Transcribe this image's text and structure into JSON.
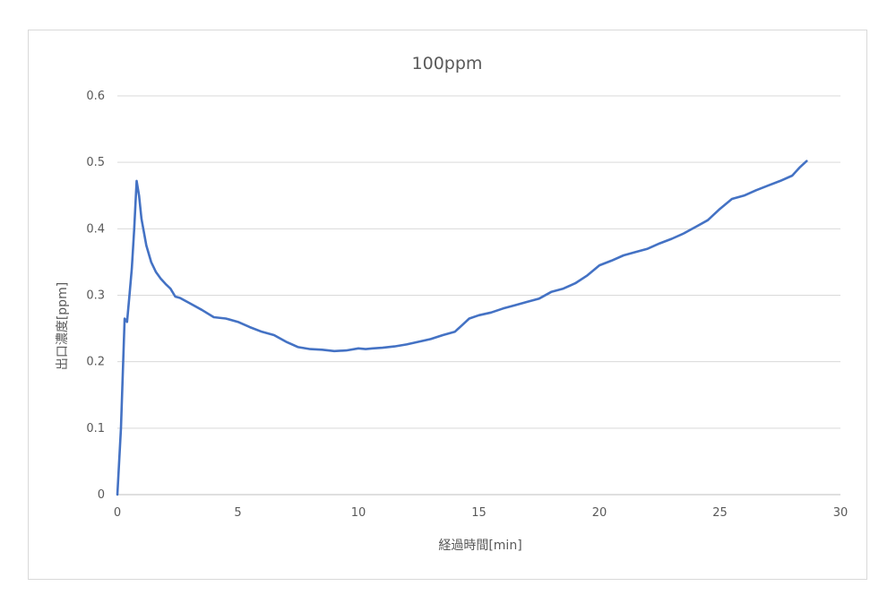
{
  "chart_data": {
    "type": "line",
    "title": "100ppm",
    "xlabel": "経過時間[min]",
    "ylabel": "出口濃度[ppm]",
    "xlim": [
      0,
      30
    ],
    "ylim": [
      0,
      0.6
    ],
    "x_ticks": [
      "0",
      "5",
      "10",
      "15",
      "20",
      "25",
      "30"
    ],
    "y_ticks": [
      "0",
      "0.1",
      "0.2",
      "0.3",
      "0.4",
      "0.5",
      "0.6"
    ],
    "grid": "horizontal",
    "legend": "none",
    "colors": {
      "series": "#4472c4",
      "grid": "#d9d9d9",
      "axis": "#bfbfbf",
      "text": "#595959"
    },
    "series": [
      {
        "x": [
          0,
          0.15,
          0.3,
          0.4,
          0.5,
          0.6,
          0.7,
          0.8,
          0.9,
          1.0,
          1.2,
          1.4,
          1.6,
          1.8,
          2.0,
          2.2,
          2.4,
          2.6,
          3.0,
          3.5,
          4.0,
          4.5,
          5.0,
          5.5,
          6.0,
          6.5,
          7.0,
          7.5,
          8.0,
          8.5,
          9.0,
          9.5,
          10.0,
          10.3,
          10.6,
          11.0,
          11.5,
          12.0,
          12.5,
          13.0,
          13.5,
          14.0,
          14.3,
          14.6,
          15.0,
          15.5,
          16.0,
          16.5,
          17.0,
          17.5,
          18.0,
          18.5,
          19.0,
          19.5,
          20.0,
          20.5,
          21.0,
          21.5,
          22.0,
          22.5,
          23.0,
          23.5,
          24.0,
          24.5,
          25.0,
          25.5,
          26.0,
          26.5,
          27.0,
          27.5,
          28.0,
          28.3,
          28.6
        ],
        "y": [
          0,
          0.1,
          0.265,
          0.26,
          0.3,
          0.34,
          0.4,
          0.472,
          0.45,
          0.415,
          0.375,
          0.35,
          0.335,
          0.325,
          0.317,
          0.31,
          0.298,
          0.296,
          0.288,
          0.278,
          0.267,
          0.265,
          0.26,
          0.252,
          0.245,
          0.24,
          0.23,
          0.222,
          0.219,
          0.218,
          0.216,
          0.217,
          0.22,
          0.219,
          0.22,
          0.221,
          0.223,
          0.226,
          0.23,
          0.234,
          0.24,
          0.245,
          0.255,
          0.265,
          0.27,
          0.274,
          0.28,
          0.285,
          0.29,
          0.295,
          0.305,
          0.31,
          0.318,
          0.33,
          0.345,
          0.352,
          0.36,
          0.365,
          0.37,
          0.378,
          0.385,
          0.393,
          0.403,
          0.413,
          0.43,
          0.445,
          0.45,
          0.458,
          0.465,
          0.472,
          0.48,
          0.492,
          0.502
        ]
      }
    ]
  }
}
